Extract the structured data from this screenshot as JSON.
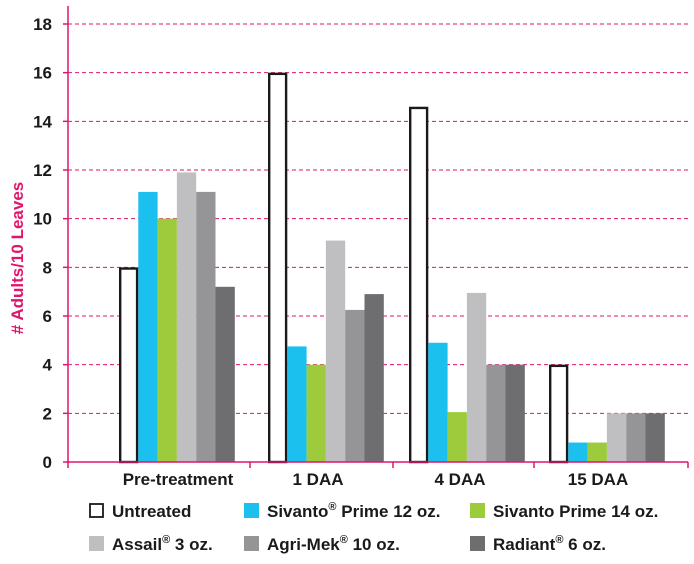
{
  "chart_data": {
    "type": "bar",
    "ylabel": "# Adults/10 Leaves",
    "ylim": [
      0,
      18
    ],
    "yticks": [
      0,
      2,
      4,
      6,
      8,
      10,
      12,
      14,
      16,
      18
    ],
    "grid": "horizontal dashed",
    "categories": [
      "Pre-treatment",
      "1 DAA",
      "4 DAA",
      "15 DAA"
    ],
    "series": [
      {
        "name": "Untreated",
        "color": "#ffffff",
        "stroke": "#1a1a1a",
        "legend": {
          "main": "Untreated",
          "sup": "",
          "rest": ""
        },
        "values": [
          8.0,
          16.0,
          14.6,
          4.0
        ]
      },
      {
        "name": "Sivanto® Prime 12 oz.",
        "color": "#1cc0ef",
        "legend": {
          "main": "Sivanto",
          "sup": "®",
          "rest": " Prime 12 oz."
        },
        "values": [
          11.1,
          4.75,
          4.9,
          0.8
        ]
      },
      {
        "name": "Sivanto Prime 14 oz.",
        "color": "#9dcb3b",
        "legend": {
          "main": "Sivanto Prime 14 oz.",
          "sup": "",
          "rest": ""
        },
        "values": [
          10.0,
          4.0,
          2.05,
          0.8
        ]
      },
      {
        "name": "Assail® 3 oz.",
        "color": "#bfbfc1",
        "legend": {
          "main": "Assail",
          "sup": "®",
          "rest": " 3 oz."
        },
        "values": [
          11.9,
          9.1,
          6.95,
          2.0
        ]
      },
      {
        "name": "Agri-Mek® 10 oz.",
        "color": "#959597",
        "legend": {
          "main": "Agri-Mek",
          "sup": "®",
          "rest": " 10 oz."
        },
        "values": [
          11.1,
          6.25,
          4.0,
          2.0
        ]
      },
      {
        "name": "Radiant® 6 oz.",
        "color": "#6e6e70",
        "legend": {
          "main": "Radiant",
          "sup": "®",
          "rest": " 6 oz."
        },
        "values": [
          7.2,
          6.9,
          4.0,
          2.0
        ]
      }
    ],
    "colors": {
      "axis": "#e0156b",
      "grid": "#e0156b",
      "ylabel": "#e0156b"
    },
    "legend_position": "bottom"
  }
}
